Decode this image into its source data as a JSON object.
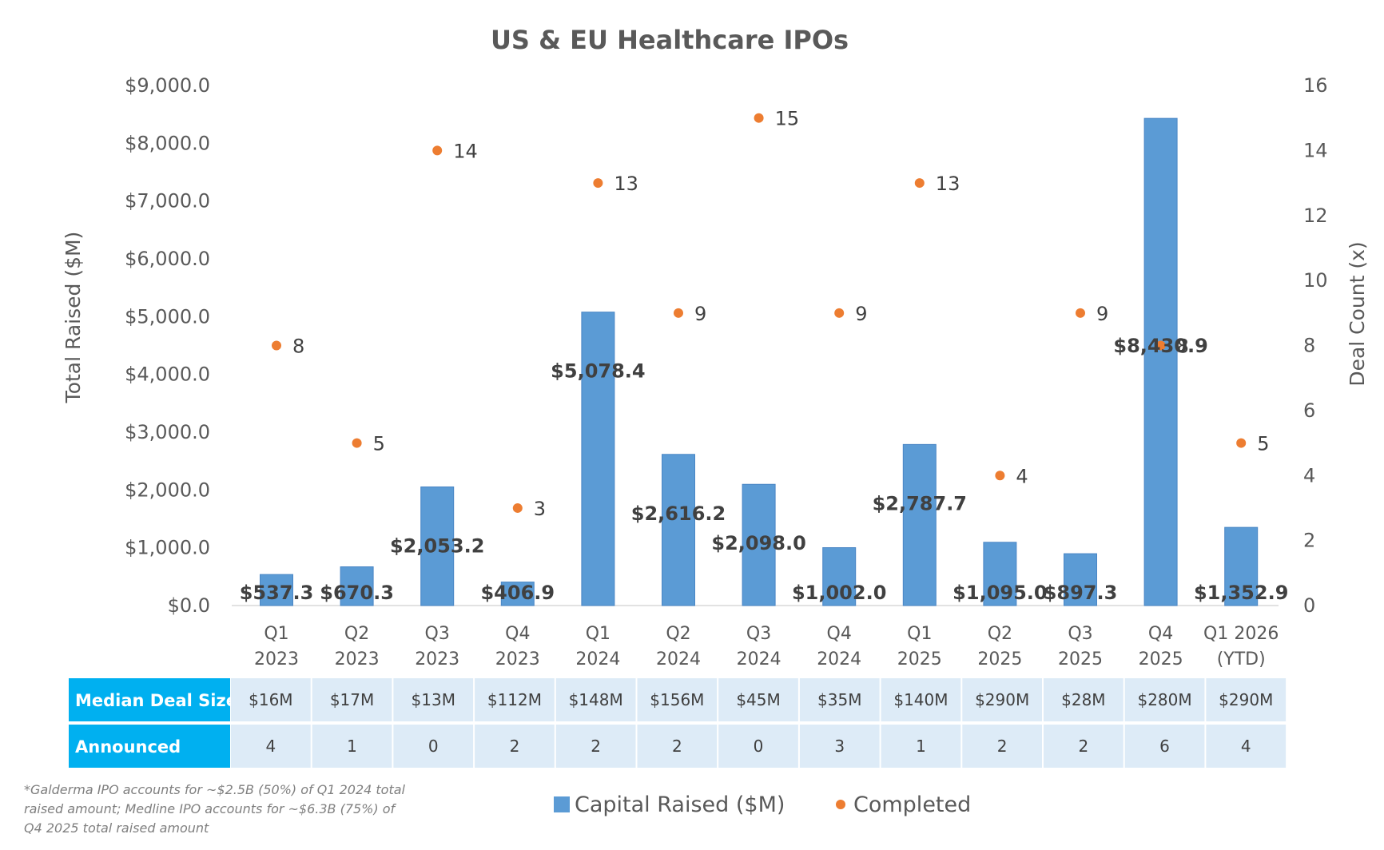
{
  "chart_data": {
    "type": "bar",
    "title": "US & EU Healthcare IPOs",
    "ylabel": "Total Raised ($M)",
    "y2label": "Deal Count (x)",
    "ylim": [
      0,
      9000
    ],
    "y2lim": [
      0,
      16
    ],
    "y_ticks": [
      "$0.0",
      "$1,000.0",
      "$2,000.0",
      "$3,000.0",
      "$4,000.0",
      "$5,000.0",
      "$6,000.0",
      "$7,000.0",
      "$8,000.0",
      "$9,000.0"
    ],
    "y2_ticks": [
      "0",
      "2",
      "4",
      "6",
      "8",
      "10",
      "12",
      "14",
      "16"
    ],
    "categories": [
      [
        "Q1",
        "2023"
      ],
      [
        "Q2",
        "2023"
      ],
      [
        "Q3",
        "2023"
      ],
      [
        "Q4",
        "2023"
      ],
      [
        "Q1",
        "2024"
      ],
      [
        "Q2",
        "2024"
      ],
      [
        "Q3",
        "2024"
      ],
      [
        "Q4",
        "2024"
      ],
      [
        "Q1",
        "2025"
      ],
      [
        "Q2",
        "2025"
      ],
      [
        "Q3",
        "2025"
      ],
      [
        "Q4",
        "2025"
      ],
      [
        "Q1 2026",
        "(YTD)"
      ]
    ],
    "series": [
      {
        "name": "Capital Raised ($M)",
        "kind": "bar",
        "axis": "left",
        "color": "#5b9bd5",
        "values": [
          537.3,
          670.3,
          2053.2,
          406.9,
          5078.4,
          2616.2,
          2098.0,
          1002.0,
          2787.7,
          1095.0,
          897.3,
          8430.9,
          1352.9
        ],
        "labels": [
          "$537.3",
          "$670.3",
          "$2,053.2",
          "$406.9",
          "$5,078.4",
          "$2,616.2",
          "$2,098.0",
          "$1,002.0",
          "$2,787.7",
          "$1,095.0",
          "$897.3",
          "$8,430.9",
          "$1,352.9"
        ]
      },
      {
        "name": "Completed",
        "kind": "scatter",
        "axis": "right",
        "color": "#ed7d31",
        "values": [
          8,
          5,
          14,
          3,
          13,
          9,
          15,
          9,
          13,
          4,
          9,
          8,
          5
        ]
      }
    ],
    "legend_position": "bottom",
    "grid": false,
    "table": {
      "header_color": "#00b0f0",
      "cell_color": "#ddebf7",
      "rows": [
        {
          "label": "Median Deal Size",
          "values": [
            "$16M",
            "$17M",
            "$13M",
            "$112M",
            "$148M",
            "$156M",
            "$45M",
            "$35M",
            "$140M",
            "$290M",
            "$28M",
            "$280M",
            "$290M"
          ]
        },
        {
          "label": "Announced",
          "values": [
            "4",
            "1",
            "0",
            "2",
            "2",
            "2",
            "0",
            "3",
            "1",
            "2",
            "2",
            "6",
            "4"
          ]
        }
      ]
    },
    "footnote": [
      "*Galderma IPO accounts for ~$2.5B (50%) of Q1 2024 total",
      "raised amount; Medline IPO accounts for ~$6.3B (75%) of",
      "Q4 2025 total raised amount"
    ]
  }
}
